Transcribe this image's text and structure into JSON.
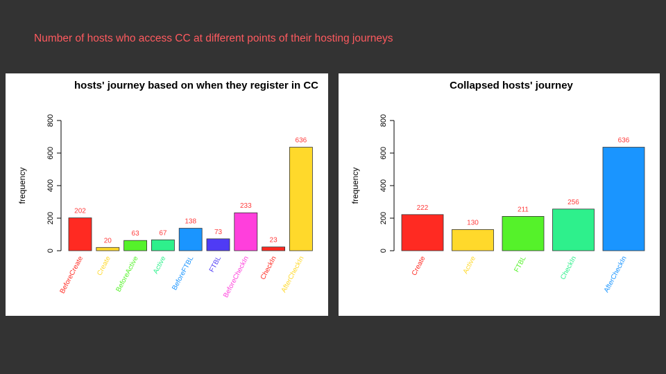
{
  "slide_title": "Number of hosts who access CC at different points of their hosting journeys",
  "chart_data": [
    {
      "type": "bar",
      "title": "hosts' journey based on when they register in CC",
      "xlabel": "",
      "ylabel": "frequency",
      "ylim": [
        0,
        800
      ],
      "yticks": [
        "0",
        "200",
        "400",
        "600",
        "800"
      ],
      "categories": [
        "BeforeCreate",
        "Create",
        "BeforeActive",
        "Active",
        "BeforeFTBL",
        "FTBL",
        "BeforeCheckIn",
        "CheckIn",
        "AfterCheckIn"
      ],
      "values": [
        202,
        20,
        63,
        67,
        138,
        73,
        233,
        23,
        636
      ],
      "data_labels": [
        "202",
        "20",
        "63",
        "67",
        "138",
        "73",
        "233",
        "23",
        "636"
      ],
      "colors": [
        "#ff2a22",
        "#ffd92b",
        "#55f22a",
        "#2ef08c",
        "#1a95ff",
        "#4f3bf5",
        "#ff3fdc",
        "#ff2a22",
        "#ffd92b"
      ],
      "data_label_color": "#ff3b3b",
      "grid": false,
      "legend": "none"
    },
    {
      "type": "bar",
      "title": "Collapsed hosts' journey",
      "xlabel": "",
      "ylabel": "frequency",
      "ylim": [
        0,
        800
      ],
      "yticks": [
        "0",
        "200",
        "400",
        "600",
        "800"
      ],
      "categories": [
        "Create",
        "Active",
        "FTBL",
        "CheckIn",
        "AfterCheckIn"
      ],
      "values": [
        222,
        130,
        211,
        256,
        636
      ],
      "data_labels": [
        "222",
        "130",
        "211",
        "256",
        "636"
      ],
      "colors": [
        "#ff2a22",
        "#ffd92b",
        "#55f22a",
        "#2ef08c",
        "#1a95ff"
      ],
      "data_label_color": "#ff3b3b",
      "grid": false,
      "legend": "none"
    }
  ]
}
